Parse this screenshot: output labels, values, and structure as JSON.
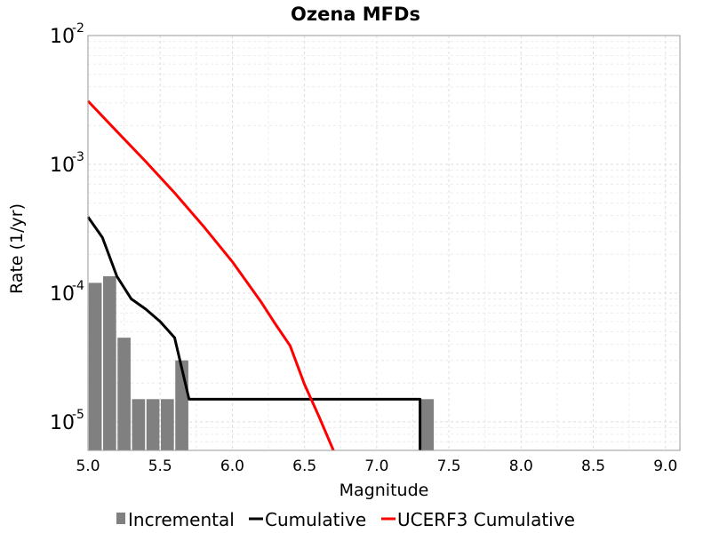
{
  "chart_data": {
    "type": "bar+line",
    "title": "Ozena MFDs",
    "xlabel": "Magnitude",
    "ylabel": "Rate (1/yr)",
    "xlim": [
      5.0,
      9.1
    ],
    "ylim": [
      6e-06,
      0.01
    ],
    "yscale": "log",
    "grid": true,
    "legend_position": "bottom",
    "x_ticks": [
      "5.0",
      "5.5",
      "6.0",
      "6.5",
      "7.0",
      "7.5",
      "8.0",
      "8.5",
      "9.0"
    ],
    "x_tick_values": [
      5.0,
      5.5,
      6.0,
      6.5,
      7.0,
      7.5,
      8.0,
      8.5,
      9.0
    ],
    "y_ticks": [
      {
        "base": "10",
        "exp": "-5",
        "value": 1e-05
      },
      {
        "base": "10",
        "exp": "-4",
        "value": 0.0001
      },
      {
        "base": "10",
        "exp": "-3",
        "value": 0.001
      },
      {
        "base": "10",
        "exp": "-2",
        "value": 0.01
      }
    ],
    "bar_width": 0.1,
    "series": [
      {
        "name": "Incremental",
        "kind": "bar",
        "color": "#808080",
        "x": [
          5.05,
          5.15,
          5.25,
          5.35,
          5.45,
          5.55,
          5.65,
          7.35
        ],
        "values": [
          0.00012,
          0.000135,
          4.5e-05,
          1.5e-05,
          1.5e-05,
          1.5e-05,
          3e-05,
          1.5e-05
        ]
      },
      {
        "name": "Cumulative",
        "kind": "line",
        "color": "#000000",
        "x": [
          5.0,
          5.1,
          5.2,
          5.3,
          5.4,
          5.5,
          5.6,
          5.7,
          6.0,
          6.5,
          7.0,
          7.3,
          7.3
        ],
        "values": [
          0.00039,
          0.00027,
          0.000135,
          9e-05,
          7.5e-05,
          6e-05,
          4.5e-05,
          1.5e-05,
          1.5e-05,
          1.5e-05,
          1.5e-05,
          1.5e-05,
          5e-06
        ]
      },
      {
        "name": "UCERF3 Cumulative",
        "kind": "line",
        "color": "#ff0000",
        "x": [
          5.0,
          5.2,
          5.4,
          5.6,
          5.8,
          6.0,
          6.2,
          6.3,
          6.4,
          6.5,
          6.6,
          6.7
        ],
        "values": [
          0.0031,
          0.0018,
          0.00105,
          0.0006,
          0.00033,
          0.000175,
          8.5e-05,
          5.7e-05,
          3.9e-05,
          1.95e-05,
          1.1e-05,
          5e-06
        ]
      }
    ]
  }
}
